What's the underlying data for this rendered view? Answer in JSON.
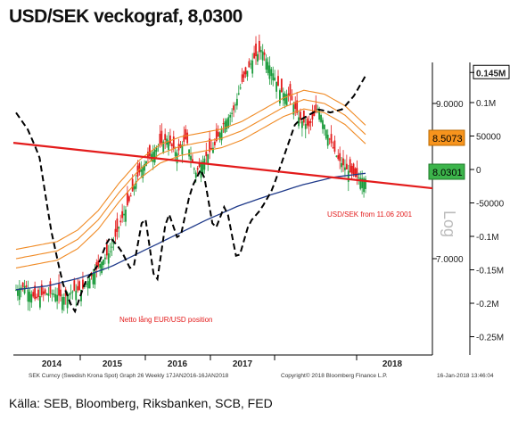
{
  "title": "USD/SEK veckograf, 8,0300",
  "source": "Källa: SEB, Bloomberg, Riksbanken, SCB, FED",
  "footer": {
    "left": "SEK Curncy (Swedish Krona Spot) Graph 26 Weekly 17JAN2016-16JAN2018",
    "middle": "Copyright© 2018 Bloomberg Finance L.P.",
    "right": "16-Jan-2018 13:46:04"
  },
  "chart_data": {
    "type": "line",
    "x_ticks": [
      "2014",
      "2015",
      "2016",
      "2017",
      "2018"
    ],
    "y_right_ticks": [
      "9.0000",
      "7.0000"
    ],
    "y_right2_ticks": [
      "0.145M",
      "0.1M",
      "50000",
      "0",
      "-50000",
      "-0.1M",
      "-0.15M",
      "-0.2M",
      "-0.25M"
    ],
    "price_tags": [
      {
        "label": "8.5073",
        "color": "#f7941d"
      },
      {
        "label": "8.0301",
        "color": "#3cb44b"
      }
    ],
    "annotations": [
      "USD/SEK from 11.06 2001",
      "Netto lång EUR/USD position",
      "Log"
    ],
    "series": [
      {
        "values": [
          6.6,
          6.65,
          6.48,
          6.55,
          6.55,
          6.5,
          6.58,
          6.6,
          6.78,
          6.95,
          7.1,
          7.45,
          7.75,
          8.1,
          8.3,
          8.45,
          8.55,
          8.35,
          8.55,
          8.1,
          8.3,
          8.45,
          8.75,
          8.9,
          9.3,
          9.55,
          9.7,
          9.45,
          9.15,
          9.1,
          8.8,
          8.7,
          8.95,
          8.6,
          8.3,
          8.15,
          8.05,
          8.03
        ],
        "color": "#1a9a3a"
      },
      {
        "values": [
          85000,
          60000,
          20000,
          -90000,
          -170000,
          -215000,
          -165000,
          -145000,
          -100000,
          -120000,
          -155000,
          -60000,
          -180000,
          -60000,
          -110000,
          -30000,
          5000,
          -95000,
          -50000,
          -140000,
          -80000,
          -60000,
          -30000,
          20000,
          70000,
          80000,
          90000,
          85000,
          90000,
          110000,
          140000
        ],
        "color": "#000000"
      },
      {
        "values": [
          7.0,
          7.05,
          7.1,
          7.25,
          7.5,
          7.85,
          8.15,
          8.35,
          8.45,
          8.5,
          8.55,
          8.65,
          8.8,
          8.95,
          9.05,
          9.0,
          8.85,
          8.6
        ],
        "color": "#f08a24"
      },
      {
        "values": [
          6.6,
          6.65,
          6.75,
          6.9,
          7.1,
          7.3,
          7.5,
          7.68,
          7.82,
          7.95,
          8.05,
          8.1
        ],
        "color": "#1f3a8a"
      }
    ],
    "trendline": {
      "from": 8.55,
      "to": 7.85,
      "color": "#e31b1b"
    }
  }
}
